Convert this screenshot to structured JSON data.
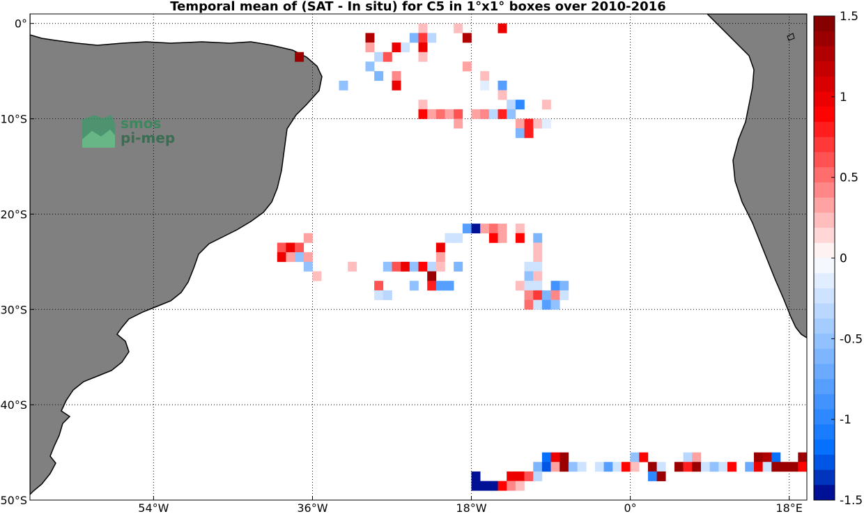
{
  "chart_data": {
    "type": "heatmap",
    "title": "Temporal mean of (SAT - In situ) for C5 in 1°x1° boxes over 2010-2016",
    "xlim": [
      -68,
      20
    ],
    "ylim": [
      -50,
      1
    ],
    "grid": true,
    "x_ticks": [
      {
        "value": -54,
        "label": "54°W"
      },
      {
        "value": -36,
        "label": "36°W"
      },
      {
        "value": -18,
        "label": "18°W"
      },
      {
        "value": 0,
        "label": "0°"
      },
      {
        "value": 18,
        "label": "18°E"
      }
    ],
    "y_ticks": [
      {
        "value": 0,
        "label": "0°"
      },
      {
        "value": -10,
        "label": "10°S"
      },
      {
        "value": -20,
        "label": "20°S"
      },
      {
        "value": -30,
        "label": "30°S"
      },
      {
        "value": -40,
        "label": "40°S"
      },
      {
        "value": -50,
        "label": "50°S"
      }
    ],
    "colorbar": {
      "range": [
        -1.5,
        1.5
      ],
      "levels": 32,
      "colormap": "blue-white-red",
      "ticks": [
        {
          "value": 1.5,
          "label": "1.5"
        },
        {
          "value": 1,
          "label": "1"
        },
        {
          "value": 0.5,
          "label": "0.5"
        },
        {
          "value": 0,
          "label": "0"
        },
        {
          "value": -0.5,
          "label": "-0.5"
        },
        {
          "value": -1,
          "label": "-1"
        },
        {
          "value": -1.5,
          "label": "-1.5"
        }
      ]
    },
    "cells": [
      {
        "lon": -29.5,
        "lat": -1.5,
        "v": 1.3
      },
      {
        "lon": -23.5,
        "lat": -0.5,
        "v": 0.2
      },
      {
        "lon": -24.5,
        "lat": -1.5,
        "v": -0.6
      },
      {
        "lon": -23.5,
        "lat": -1.5,
        "v": 0.7
      },
      {
        "lon": -22.5,
        "lat": -1.5,
        "v": -0.3
      },
      {
        "lon": -19.5,
        "lat": -0.5,
        "v": 0.2
      },
      {
        "lon": -18.5,
        "lat": -1.5,
        "v": 1.3
      },
      {
        "lon": -14.5,
        "lat": -0.5,
        "v": 1.0
      },
      {
        "lon": -37.5,
        "lat": -3.5,
        "v": 1.4
      },
      {
        "lon": -29.5,
        "lat": -2.5,
        "v": 0.3
      },
      {
        "lon": -26.5,
        "lat": -2.5,
        "v": 1.0
      },
      {
        "lon": -25.5,
        "lat": -2.5,
        "v": -0.2
      },
      {
        "lon": -23.5,
        "lat": -2.5,
        "v": 1.0
      },
      {
        "lon": -28.5,
        "lat": -3.5,
        "v": -0.3
      },
      {
        "lon": -27.5,
        "lat": -3.5,
        "v": 0.6
      },
      {
        "lon": -23.5,
        "lat": -3.5,
        "v": 0.2
      },
      {
        "lon": -29.5,
        "lat": -4.5,
        "v": -0.5
      },
      {
        "lon": -18.5,
        "lat": -4.5,
        "v": 0.3
      },
      {
        "lon": -28.5,
        "lat": -5.5,
        "v": -0.6
      },
      {
        "lon": -26.5,
        "lat": -5.5,
        "v": 0.4
      },
      {
        "lon": -16.5,
        "lat": -5.5,
        "v": 0.2
      },
      {
        "lon": -32.5,
        "lat": -6.5,
        "v": -0.5
      },
      {
        "lon": -26.5,
        "lat": -6.5,
        "v": 1.0
      },
      {
        "lon": -16.5,
        "lat": -6.5,
        "v": -0.1
      },
      {
        "lon": -14.5,
        "lat": -6.5,
        "v": -0.8
      },
      {
        "lon": -14.5,
        "lat": -7.5,
        "v": 0.2
      },
      {
        "lon": -23.5,
        "lat": -8.5,
        "v": 0.2
      },
      {
        "lon": -13.5,
        "lat": -8.5,
        "v": -0.3
      },
      {
        "lon": -12.5,
        "lat": -8.5,
        "v": -1.0
      },
      {
        "lon": -9.5,
        "lat": -8.5,
        "v": 0.2
      },
      {
        "lon": -23.5,
        "lat": -9.5,
        "v": 0.9
      },
      {
        "lon": -22.5,
        "lat": -9.5,
        "v": 0.3
      },
      {
        "lon": -21.5,
        "lat": -9.5,
        "v": 0.5
      },
      {
        "lon": -20.5,
        "lat": -9.5,
        "v": 0.3
      },
      {
        "lon": -19.5,
        "lat": -9.5,
        "v": 0.6
      },
      {
        "lon": -17.5,
        "lat": -9.5,
        "v": 0.3
      },
      {
        "lon": -16.5,
        "lat": -9.5,
        "v": 0.4
      },
      {
        "lon": -15.5,
        "lat": -9.5,
        "v": -0.3
      },
      {
        "lon": -14.5,
        "lat": -9.5,
        "v": 0.8
      },
      {
        "lon": -13.5,
        "lat": -9.5,
        "v": -0.5
      },
      {
        "lon": -19.5,
        "lat": -10.5,
        "v": 0.3
      },
      {
        "lon": -12.5,
        "lat": -10.5,
        "v": 0.3
      },
      {
        "lon": -11.5,
        "lat": -10.5,
        "v": 0.8
      },
      {
        "lon": -10.5,
        "lat": -10.5,
        "v": 0.2
      },
      {
        "lon": -9.5,
        "lat": -10.5,
        "v": -0.1
      },
      {
        "lon": -12.5,
        "lat": -11.5,
        "v": -0.6
      },
      {
        "lon": -11.5,
        "lat": -11.5,
        "v": 0.8
      },
      {
        "lon": -18.5,
        "lat": -21.5,
        "v": -0.8
      },
      {
        "lon": -17.5,
        "lat": -21.5,
        "v": -1.5
      },
      {
        "lon": -16.5,
        "lat": -21.5,
        "v": 0.3
      },
      {
        "lon": -15.5,
        "lat": -21.5,
        "v": 0.5
      },
      {
        "lon": -14.5,
        "lat": -21.5,
        "v": 0.3
      },
      {
        "lon": -12.5,
        "lat": -21.5,
        "v": 0.2
      },
      {
        "lon": -36.5,
        "lat": -22.5,
        "v": 0.3
      },
      {
        "lon": -20.5,
        "lat": -22.5,
        "v": -0.2
      },
      {
        "lon": -19.5,
        "lat": -22.5,
        "v": -0.2
      },
      {
        "lon": -15.5,
        "lat": -22.5,
        "v": 0.9
      },
      {
        "lon": -14.5,
        "lat": -22.5,
        "v": 0.3
      },
      {
        "lon": -12.5,
        "lat": -22.5,
        "v": 0.9
      },
      {
        "lon": -10.5,
        "lat": -22.5,
        "v": -0.6
      },
      {
        "lon": -39.5,
        "lat": -23.5,
        "v": 0.6
      },
      {
        "lon": -38.5,
        "lat": -23.5,
        "v": 1.0
      },
      {
        "lon": -37.5,
        "lat": -23.5,
        "v": 0.6
      },
      {
        "lon": -21.5,
        "lat": -23.5,
        "v": 1.0
      },
      {
        "lon": -10.5,
        "lat": -23.5,
        "v": 0.2
      },
      {
        "lon": -39.5,
        "lat": -24.5,
        "v": 1.0
      },
      {
        "lon": -38.5,
        "lat": -24.5,
        "v": 0.3
      },
      {
        "lon": -37.5,
        "lat": -24.5,
        "v": -0.5
      },
      {
        "lon": -36.5,
        "lat": -24.5,
        "v": 0.3
      },
      {
        "lon": -21.5,
        "lat": -24.5,
        "v": 0.3
      },
      {
        "lon": -10.5,
        "lat": -24.5,
        "v": 0.2
      },
      {
        "lon": -36.5,
        "lat": -25.5,
        "v": -0.5
      },
      {
        "lon": -31.5,
        "lat": -25.5,
        "v": 0.2
      },
      {
        "lon": -27.5,
        "lat": -25.5,
        "v": -0.5
      },
      {
        "lon": -26.5,
        "lat": -25.5,
        "v": 0.6
      },
      {
        "lon": -25.5,
        "lat": -25.5,
        "v": 1.0
      },
      {
        "lon": -24.5,
        "lat": -25.5,
        "v": -0.5
      },
      {
        "lon": -23.5,
        "lat": -25.5,
        "v": 0.9
      },
      {
        "lon": -22.5,
        "lat": -25.5,
        "v": -0.3
      },
      {
        "lon": -21.5,
        "lat": -25.5,
        "v": 0.2
      },
      {
        "lon": -19.5,
        "lat": -25.5,
        "v": -0.6
      },
      {
        "lon": -11.5,
        "lat": -25.5,
        "v": -0.2
      },
      {
        "lon": -10.5,
        "lat": -25.5,
        "v": -0.2
      },
      {
        "lon": -35.5,
        "lat": -26.5,
        "v": 0.2
      },
      {
        "lon": -22.5,
        "lat": -26.5,
        "v": 1.4
      },
      {
        "lon": -11.5,
        "lat": -26.5,
        "v": -0.5
      },
      {
        "lon": -10.5,
        "lat": -26.5,
        "v": 0.2
      },
      {
        "lon": -28.5,
        "lat": -27.5,
        "v": 0.6
      },
      {
        "lon": -24.5,
        "lat": -27.5,
        "v": -0.5
      },
      {
        "lon": -22.5,
        "lat": -27.5,
        "v": 0.8
      },
      {
        "lon": -21.5,
        "lat": -27.5,
        "v": -0.8
      },
      {
        "lon": -20.5,
        "lat": -27.5,
        "v": -0.8
      },
      {
        "lon": -12.5,
        "lat": -27.5,
        "v": 0.2
      },
      {
        "lon": -11.5,
        "lat": -27.5,
        "v": -0.2
      },
      {
        "lon": -10.5,
        "lat": -27.5,
        "v": -0.2
      },
      {
        "lon": -8.5,
        "lat": -27.5,
        "v": -0.9
      },
      {
        "lon": -7.5,
        "lat": -27.5,
        "v": -0.6
      },
      {
        "lon": -28.5,
        "lat": -28.5,
        "v": -0.2
      },
      {
        "lon": -27.5,
        "lat": -28.5,
        "v": -0.3
      },
      {
        "lon": -11.5,
        "lat": -28.5,
        "v": 0.4
      },
      {
        "lon": -10.5,
        "lat": -28.5,
        "v": 0.7
      },
      {
        "lon": -9.5,
        "lat": -28.5,
        "v": -0.6
      },
      {
        "lon": -8.5,
        "lat": -28.5,
        "v": 0.4
      },
      {
        "lon": -7.5,
        "lat": -28.5,
        "v": -0.2
      },
      {
        "lon": -11.5,
        "lat": -29.5,
        "v": 0.5
      },
      {
        "lon": -10.5,
        "lat": -29.5,
        "v": -0.2
      },
      {
        "lon": -9.5,
        "lat": -29.5,
        "v": -0.8
      },
      {
        "lon": -8.5,
        "lat": -29.5,
        "v": -0.5
      },
      {
        "lon": -9.5,
        "lat": -45.5,
        "v": -1.2
      },
      {
        "lon": -8.5,
        "lat": -45.5,
        "v": 1.0
      },
      {
        "lon": -7.5,
        "lat": -45.5,
        "v": 1.4
      },
      {
        "lon": 0.5,
        "lat": -45.5,
        "v": -0.5
      },
      {
        "lon": 1.5,
        "lat": -45.5,
        "v": 0.9
      },
      {
        "lon": 6.5,
        "lat": -45.5,
        "v": -0.3
      },
      {
        "lon": 7.5,
        "lat": -45.5,
        "v": 0.3
      },
      {
        "lon": 14.5,
        "lat": -45.5,
        "v": 1.4
      },
      {
        "lon": 15.5,
        "lat": -45.5,
        "v": 1.3
      },
      {
        "lon": 16.5,
        "lat": -45.5,
        "v": -1.2
      },
      {
        "lon": 19.5,
        "lat": -45.5,
        "v": 1.4
      },
      {
        "lon": -10.5,
        "lat": -46.5,
        "v": -0.6
      },
      {
        "lon": -9.5,
        "lat": -46.5,
        "v": -1.3
      },
      {
        "lon": -8.5,
        "lat": -46.5,
        "v": 0.3
      },
      {
        "lon": -7.5,
        "lat": -46.5,
        "v": 1.4
      },
      {
        "lon": -6.5,
        "lat": -46.5,
        "v": -0.5
      },
      {
        "lon": -5.5,
        "lat": -46.5,
        "v": -0.2
      },
      {
        "lon": -3.5,
        "lat": -46.5,
        "v": -0.2
      },
      {
        "lon": -2.5,
        "lat": -46.5,
        "v": -0.8
      },
      {
        "lon": -1.5,
        "lat": -46.5,
        "v": -0.2
      },
      {
        "lon": -0.5,
        "lat": -46.5,
        "v": 0.9
      },
      {
        "lon": 0.5,
        "lat": -46.5,
        "v": 0.2
      },
      {
        "lon": 2.5,
        "lat": -46.5,
        "v": 1.4
      },
      {
        "lon": 3.5,
        "lat": -46.5,
        "v": -0.2
      },
      {
        "lon": 5.5,
        "lat": -46.5,
        "v": 1.4
      },
      {
        "lon": 6.5,
        "lat": -46.5,
        "v": 0.8
      },
      {
        "lon": 7.5,
        "lat": -46.5,
        "v": 1.4
      },
      {
        "lon": 8.5,
        "lat": -46.5,
        "v": -0.2
      },
      {
        "lon": 9.5,
        "lat": -46.5,
        "v": -0.5
      },
      {
        "lon": 10.5,
        "lat": -46.5,
        "v": -0.2
      },
      {
        "lon": 11.5,
        "lat": -46.5,
        "v": 0.9
      },
      {
        "lon": 13.5,
        "lat": -46.5,
        "v": -0.7
      },
      {
        "lon": 14.5,
        "lat": -46.5,
        "v": 1.0
      },
      {
        "lon": 15.5,
        "lat": -46.5,
        "v": -0.2
      },
      {
        "lon": 16.5,
        "lat": -46.5,
        "v": 1.4
      },
      {
        "lon": 17.5,
        "lat": -46.5,
        "v": 1.4
      },
      {
        "lon": 18.5,
        "lat": -46.5,
        "v": 1.4
      },
      {
        "lon": 19.5,
        "lat": -46.5,
        "v": 0.9
      },
      {
        "lon": -13.5,
        "lat": -47.5,
        "v": 1.0
      },
      {
        "lon": -12.5,
        "lat": -47.5,
        "v": 1.0
      },
      {
        "lon": -11.5,
        "lat": -47.5,
        "v": 0.6
      },
      {
        "lon": -10.5,
        "lat": -47.5,
        "v": -0.3
      },
      {
        "lon": 2.5,
        "lat": -47.5,
        "v": -1.0
      },
      {
        "lon": 3.5,
        "lat": -47.5,
        "v": 1.4
      },
      {
        "lon": -17.5,
        "lat": -48.5,
        "v": -1.5
      },
      {
        "lon": -16.5,
        "lat": -48.5,
        "v": -1.5
      },
      {
        "lon": -15.5,
        "lat": -48.5,
        "v": -1.5
      },
      {
        "lon": -14.5,
        "lat": -48.5,
        "v": 0.9
      },
      {
        "lon": -13.5,
        "lat": -48.5,
        "v": 0.4
      },
      {
        "lon": -12.5,
        "lat": -48.5,
        "v": 0.2
      },
      {
        "lon": -17.5,
        "lat": -47.5,
        "v": -1.5
      }
    ]
  },
  "logo": {
    "line1": "smos",
    "line2": "pi-mep"
  },
  "colors": {
    "land": "#808080",
    "coast": "#000000",
    "grid": "#000000",
    "logo": "#2e8b57"
  }
}
